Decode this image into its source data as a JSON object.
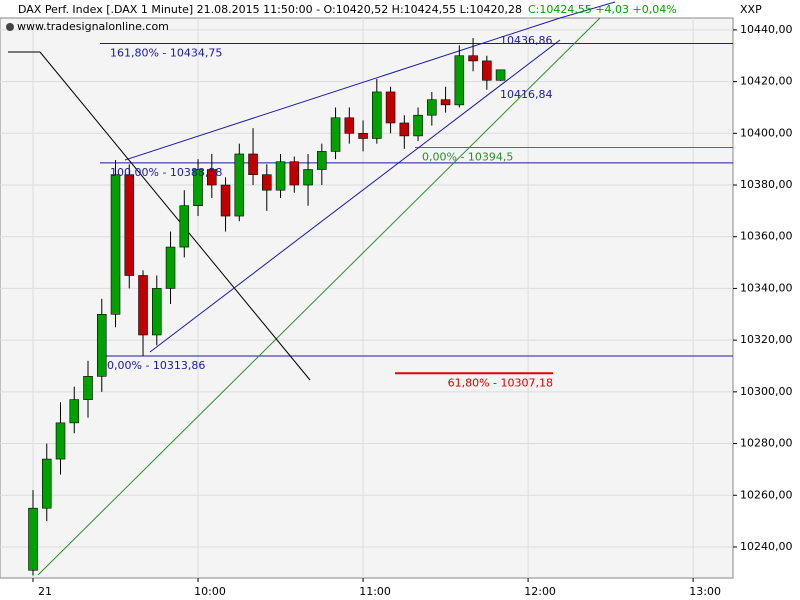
{
  "chart_data": {
    "type": "candlestick",
    "title": "DAX Perf. Index [.DAX  1 Minute] 21.08.2015 11:50:00 - O:10420,52 H:10424,55 L:10420,28",
    "title_change": "C:10424,55 +4,03 +0,04%",
    "subtitle": "www.tradesignalonline.com",
    "symbol": "XXP",
    "x": [
      540,
      545,
      550,
      555,
      560,
      565,
      570,
      575,
      580,
      585,
      590,
      595,
      600,
      605,
      610,
      615,
      620,
      625,
      630,
      635,
      640,
      645,
      650,
      655,
      660,
      665,
      670,
      675,
      680,
      685,
      690,
      695,
      700,
      705,
      710
    ],
    "open": [
      10231,
      10255,
      10274,
      10288,
      10297,
      10306,
      10330,
      10384,
      10345,
      10322,
      10340,
      10356,
      10372,
      10386,
      10380,
      10368,
      10392,
      10384,
      10378,
      10389,
      10380,
      10386,
      10393,
      10406,
      10400,
      10398,
      10416,
      10404,
      10399,
      10407,
      10413,
      10411,
      10430,
      10428,
      10420.52
    ],
    "high": [
      10262,
      10280,
      10296,
      10302,
      10312,
      10336,
      10389.7,
      10388,
      10347,
      10345,
      10362,
      10378,
      10390,
      10392,
      10383,
      10396,
      10402,
      10388,
      10392,
      10391,
      10392,
      10396,
      10410,
      10410,
      10405,
      10421,
      10418,
      10407,
      10410,
      10416,
      10418,
      10434,
      10436.86,
      10430,
      10424.55
    ],
    "low": [
      10229,
      10250,
      10268,
      10284,
      10290,
      10300,
      10325,
      10340,
      10313.86,
      10318,
      10334,
      10352,
      10368,
      10375,
      10362,
      10366,
      10380,
      10370,
      10375,
      10377,
      10372,
      10380,
      10390,
      10396,
      10393,
      10396,
      10400,
      10394,
      10397,
      10403,
      10408,
      10410,
      10424,
      10416.84,
      10420.28
    ],
    "close": [
      10255,
      10274,
      10288,
      10297,
      10306,
      10330,
      10384,
      10345,
      10322,
      10340,
      10356,
      10372,
      10386,
      10380,
      10368,
      10392,
      10384,
      10378,
      10389,
      10380,
      10386,
      10393,
      10406,
      10400,
      10398,
      10416,
      10404,
      10399,
      10407,
      10413,
      10411,
      10430,
      10428,
      10420.52,
      10424.55
    ],
    "up_color": "#00a000",
    "down_color": "#c00000",
    "xlim": [
      528,
      794.5
    ],
    "ylim": [
      10228,
      10444.6
    ],
    "xticks": [
      {
        "value": 540,
        "label": "21"
      },
      {
        "value": 600,
        "label": "10:00"
      },
      {
        "value": 660,
        "label": "11:00"
      },
      {
        "value": 720,
        "label": "12:00"
      },
      {
        "value": 780,
        "label": "13:00"
      }
    ],
    "yticks": [
      {
        "value": 10240,
        "label": "10240,00"
      },
      {
        "value": 10260,
        "label": "10260,00"
      },
      {
        "value": 10280,
        "label": "10280,00"
      },
      {
        "value": 10300,
        "label": "10300,00"
      },
      {
        "value": 10320,
        "label": "10320,00"
      },
      {
        "value": 10340,
        "label": "10340,00"
      },
      {
        "value": 10360,
        "label": "10360,00"
      },
      {
        "value": 10380,
        "label": "10380,00"
      },
      {
        "value": 10400,
        "label": "10400,00"
      },
      {
        "value": 10420,
        "label": "10420,00"
      },
      {
        "value": 10440,
        "label": "10440,00"
      }
    ],
    "grid": true,
    "levels": [
      {
        "label": "161,80% - 10434,75",
        "value": 10434.75,
        "color": "#1a1aa6"
      },
      {
        "label": "100,00% - 10388,58",
        "value": 10388.58,
        "color": "#1a1aa6"
      },
      {
        "label": "0,00% - 10313,86",
        "value": 10313.86,
        "color": "#1a1aa6"
      },
      {
        "label": "0,00% - 10394,5",
        "value": 10394.5,
        "color": "#2e8b2e"
      },
      {
        "label": "61,80% - 10307,18",
        "value": 10307.18,
        "color": "#e00000"
      }
    ],
    "annotations": [
      {
        "label": "10436,86",
        "value": 10436.86
      },
      {
        "label": "10416,84",
        "value": 10416.84
      }
    ]
  }
}
